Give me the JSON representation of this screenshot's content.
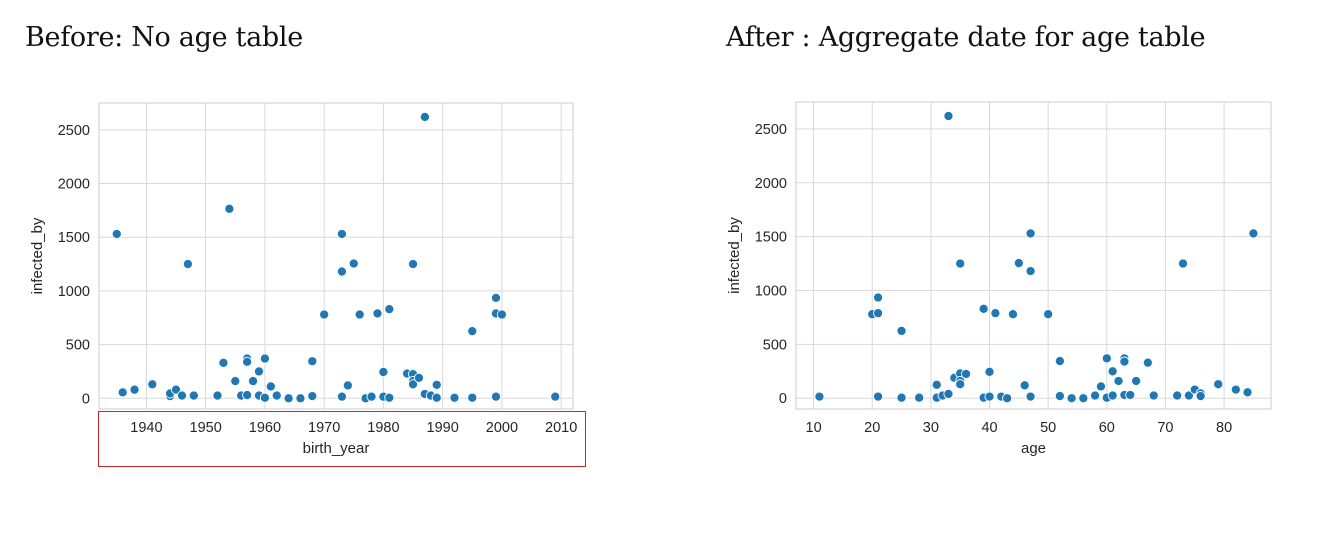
{
  "headings": {
    "left": "Before: No age table",
    "right": "After : Aggregate date for age table"
  },
  "colors": {
    "point": "#1f77b4",
    "grid": "#d9d9d9",
    "highlight_box": "#d0222a"
  },
  "chart_data": [
    {
      "type": "scatter",
      "title": "",
      "xlabel": "birth_year",
      "ylabel": "infected_by",
      "xlim": [
        1932,
        2012
      ],
      "ylim": [
        -100,
        2750
      ],
      "x_ticks": [
        1940,
        1950,
        1960,
        1970,
        1980,
        1990,
        2000,
        2010
      ],
      "y_ticks": [
        0,
        500,
        1000,
        1500,
        2000,
        2500
      ],
      "grid": true,
      "series": [
        {
          "points": [
            [
              1935,
              1530
            ],
            [
              1936,
              55
            ],
            [
              1938,
              80
            ],
            [
              1941,
              130
            ],
            [
              1944,
              20
            ],
            [
              1944,
              45
            ],
            [
              1945,
              80
            ],
            [
              1946,
              25
            ],
            [
              1947,
              1250
            ],
            [
              1948,
              25
            ],
            [
              1952,
              25
            ],
            [
              1953,
              330
            ],
            [
              1954,
              1765
            ],
            [
              1955,
              160
            ],
            [
              1956,
              25
            ],
            [
              1957,
              370
            ],
            [
              1957,
              340
            ],
            [
              1957,
              30
            ],
            [
              1958,
              160
            ],
            [
              1959,
              250
            ],
            [
              1959,
              25
            ],
            [
              1960,
              370
            ],
            [
              1960,
              5
            ],
            [
              1961,
              110
            ],
            [
              1962,
              25
            ],
            [
              1964,
              0
            ],
            [
              1966,
              0
            ],
            [
              1968,
              345
            ],
            [
              1968,
              20
            ],
            [
              1970,
              780
            ],
            [
              1973,
              1530
            ],
            [
              1973,
              1180
            ],
            [
              1973,
              15
            ],
            [
              1974,
              120
            ],
            [
              1975,
              1255
            ],
            [
              1976,
              780
            ],
            [
              1977,
              0
            ],
            [
              1978,
              15
            ],
            [
              1979,
              790
            ],
            [
              1980,
              245
            ],
            [
              1980,
              15
            ],
            [
              1981,
              830
            ],
            [
              1981,
              5
            ],
            [
              1984,
              230
            ],
            [
              1985,
              1250
            ],
            [
              1985,
              225
            ],
            [
              1985,
              160
            ],
            [
              1985,
              130
            ],
            [
              1986,
              190
            ],
            [
              1987,
              2620
            ],
            [
              1987,
              40
            ],
            [
              1988,
              25
            ],
            [
              1989,
              125
            ],
            [
              1989,
              5
            ],
            [
              1992,
              5
            ],
            [
              1995,
              625
            ],
            [
              1995,
              5
            ],
            [
              1999,
              935
            ],
            [
              1999,
              790
            ],
            [
              1999,
              15
            ],
            [
              2000,
              780
            ],
            [
              2009,
              15
            ]
          ]
        }
      ]
    },
    {
      "type": "scatter",
      "title": "",
      "xlabel": "age",
      "ylabel": "infected_by",
      "xlim": [
        7,
        88
      ],
      "ylim": [
        -100,
        2750
      ],
      "x_ticks": [
        10,
        20,
        30,
        40,
        50,
        60,
        70,
        80
      ],
      "y_ticks": [
        0,
        500,
        1000,
        1500,
        2000,
        2500
      ],
      "grid": true,
      "series": [
        {
          "points": [
            [
              11,
              15
            ],
            [
              20,
              780
            ],
            [
              21,
              935
            ],
            [
              21,
              790
            ],
            [
              21,
              15
            ],
            [
              25,
              625
            ],
            [
              25,
              5
            ],
            [
              28,
              5
            ],
            [
              31,
              125
            ],
            [
              31,
              5
            ],
            [
              32,
              25
            ],
            [
              33,
              2620
            ],
            [
              33,
              40
            ],
            [
              34,
              190
            ],
            [
              35,
              1250
            ],
            [
              35,
              230
            ],
            [
              35,
              160
            ],
            [
              35,
              130
            ],
            [
              36,
              225
            ],
            [
              39,
              830
            ],
            [
              39,
              5
            ],
            [
              40,
              245
            ],
            [
              40,
              15
            ],
            [
              41,
              790
            ],
            [
              42,
              15
            ],
            [
              43,
              0
            ],
            [
              44,
              780
            ],
            [
              45,
              1255
            ],
            [
              46,
              120
            ],
            [
              47,
              1530
            ],
            [
              47,
              1180
            ],
            [
              47,
              15
            ],
            [
              50,
              780
            ],
            [
              52,
              345
            ],
            [
              52,
              20
            ],
            [
              54,
              0
            ],
            [
              56,
              0
            ],
            [
              58,
              25
            ],
            [
              59,
              110
            ],
            [
              60,
              370
            ],
            [
              60,
              5
            ],
            [
              61,
              250
            ],
            [
              61,
              25
            ],
            [
              62,
              160
            ],
            [
              63,
              370
            ],
            [
              63,
              340
            ],
            [
              63,
              30
            ],
            [
              64,
              30
            ],
            [
              65,
              160
            ],
            [
              67,
              330
            ],
            [
              68,
              25
            ],
            [
              72,
              25
            ],
            [
              73,
              1250
            ],
            [
              74,
              25
            ],
            [
              75,
              80
            ],
            [
              76,
              45
            ],
            [
              76,
              20
            ],
            [
              79,
              130
            ],
            [
              82,
              80
            ],
            [
              84,
              55
            ],
            [
              85,
              1530
            ]
          ]
        }
      ]
    }
  ]
}
